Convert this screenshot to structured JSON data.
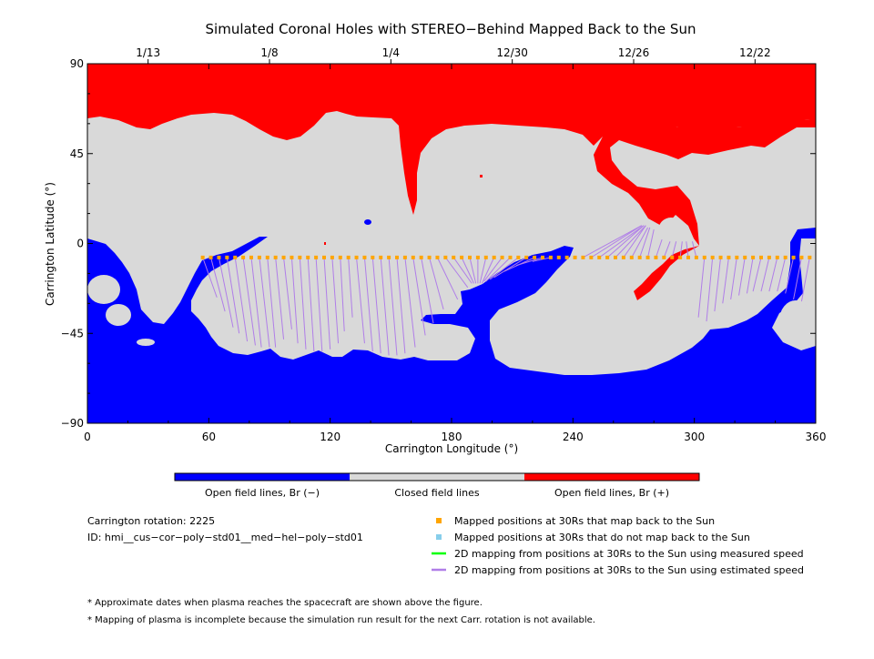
{
  "chart_data": {
    "type": "heatmap",
    "title": "Simulated Coronal Holes with STEREO−Behind Mapped Back to the Sun",
    "xlabel": "Carrington Longitude (°)",
    "ylabel": "Carrington Latitude (°)",
    "xlim": [
      0,
      360
    ],
    "ylim": [
      -90,
      90
    ],
    "x_ticks": [
      "0",
      "60",
      "120",
      "180",
      "240",
      "300",
      "360"
    ],
    "x_tick_values": [
      0,
      60,
      120,
      180,
      240,
      300,
      360
    ],
    "y_ticks": [
      "−90",
      "−45",
      "0",
      "45",
      "90"
    ],
    "y_tick_values": [
      -90,
      -45,
      0,
      45,
      90
    ],
    "top_dates": [
      {
        "label": "1/13",
        "lon": 30
      },
      {
        "label": "1/8",
        "lon": 90
      },
      {
        "label": "1/4",
        "lon": 150
      },
      {
        "label": "12/30",
        "lon": 210
      },
      {
        "label": "12/26",
        "lon": 270
      },
      {
        "label": "12/22",
        "lon": 330
      }
    ],
    "colors": {
      "open_negative": "#0000ff",
      "closed": "#d9d9d9",
      "open_positive": "#ff0000",
      "mapped_positions": "#ffa500",
      "unmapped_positions": "#87ceeb",
      "measured_speed": "#00ff00",
      "estimated_speed": "#b07ee8"
    },
    "colorbar": [
      {
        "label": "Open field lines, Br (−)",
        "color": "#0000ff"
      },
      {
        "label": "Closed field lines",
        "color": "#d9d9d9"
      },
      {
        "label": "Open field lines, Br (+)",
        "color": "#ff0000"
      }
    ],
    "mapped_points": {
      "lat": -7,
      "lon_start": 57,
      "lon_end": 360,
      "lon_step": 4
    },
    "mapping_lines": [
      {
        "lon30": 57,
        "lon_sun": 64,
        "lat_sun": -27
      },
      {
        "lon30": 61,
        "lon_sun": 68,
        "lat_sun": -34
      },
      {
        "lon30": 65,
        "lon_sun": 72,
        "lat_sun": -42
      },
      {
        "lon30": 69,
        "lon_sun": 75,
        "lat_sun": -45
      },
      {
        "lon30": 73,
        "lon_sun": 79,
        "lat_sun": -49
      },
      {
        "lon30": 77,
        "lon_sun": 83,
        "lat_sun": -51
      },
      {
        "lon30": 81,
        "lon_sun": 86,
        "lat_sun": -52
      },
      {
        "lon30": 85,
        "lon_sun": 90,
        "lat_sun": -52
      },
      {
        "lon30": 89,
        "lon_sun": 93,
        "lat_sun": -52
      },
      {
        "lon30": 93,
        "lon_sun": 97,
        "lat_sun": -48
      },
      {
        "lon30": 97,
        "lon_sun": 101,
        "lat_sun": -43
      },
      {
        "lon30": 101,
        "lon_sun": 104,
        "lat_sun": -50
      },
      {
        "lon30": 105,
        "lon_sun": 108,
        "lat_sun": -53
      },
      {
        "lon30": 109,
        "lon_sun": 112,
        "lat_sun": -54
      },
      {
        "lon30": 113,
        "lon_sun": 116,
        "lat_sun": -54
      },
      {
        "lon30": 117,
        "lon_sun": 120,
        "lat_sun": -53
      },
      {
        "lon30": 121,
        "lon_sun": 124,
        "lat_sun": -50
      },
      {
        "lon30": 125,
        "lon_sun": 127,
        "lat_sun": -44
      },
      {
        "lon30": 129,
        "lon_sun": 131,
        "lat_sun": -37
      },
      {
        "lon30": 133,
        "lon_sun": 137,
        "lat_sun": -50
      },
      {
        "lon30": 137,
        "lon_sun": 141,
        "lat_sun": -54
      },
      {
        "lon30": 141,
        "lon_sun": 145,
        "lat_sun": -55
      },
      {
        "lon30": 145,
        "lon_sun": 149,
        "lat_sun": -56
      },
      {
        "lon30": 149,
        "lon_sun": 153,
        "lat_sun": -56
      },
      {
        "lon30": 153,
        "lon_sun": 157,
        "lat_sun": -55
      },
      {
        "lon30": 157,
        "lon_sun": 162,
        "lat_sun": -52
      },
      {
        "lon30": 161,
        "lon_sun": 167,
        "lat_sun": -46
      },
      {
        "lon30": 165,
        "lon_sun": 171,
        "lat_sun": -40
      },
      {
        "lon30": 169,
        "lon_sun": 176,
        "lat_sun": -33
      },
      {
        "lon30": 173,
        "lon_sun": 183,
        "lat_sun": -28
      },
      {
        "lon30": 177,
        "lon_sun": 188,
        "lat_sun": -22
      },
      {
        "lon30": 181,
        "lon_sun": 190,
        "lat_sun": -20
      },
      {
        "lon30": 185,
        "lon_sun": 191,
        "lat_sun": -20
      },
      {
        "lon30": 189,
        "lon_sun": 192,
        "lat_sun": -20
      },
      {
        "lon30": 193,
        "lon_sun": 193,
        "lat_sun": -20
      },
      {
        "lon30": 197,
        "lon_sun": 194,
        "lat_sun": -20
      },
      {
        "lon30": 201,
        "lon_sun": 195,
        "lat_sun": -20
      },
      {
        "lon30": 205,
        "lon_sun": 196,
        "lat_sun": -19
      },
      {
        "lon30": 209,
        "lon_sun": 197,
        "lat_sun": -19
      },
      {
        "lon30": 213,
        "lon_sun": 199,
        "lat_sun": -18
      },
      {
        "lon30": 217,
        "lon_sun": 201,
        "lat_sun": -17
      },
      {
        "lon30": 221,
        "lon_sun": 206,
        "lat_sun": -14
      },
      {
        "lon30": 225,
        "lon_sun": 212,
        "lat_sun": -11
      },
      {
        "lon30": 229,
        "lon_sun": 220,
        "lat_sun": -9
      },
      {
        "lon30": 245,
        "lon_sun": 274,
        "lat_sun": 9
      },
      {
        "lon30": 249,
        "lon_sun": 274,
        "lat_sun": 9
      },
      {
        "lon30": 253,
        "lon_sun": 275,
        "lat_sun": 9
      },
      {
        "lon30": 257,
        "lon_sun": 275,
        "lat_sun": 9
      },
      {
        "lon30": 261,
        "lon_sun": 276,
        "lat_sun": 9
      },
      {
        "lon30": 265,
        "lon_sun": 276,
        "lat_sun": 9
      },
      {
        "lon30": 269,
        "lon_sun": 277,
        "lat_sun": 8
      },
      {
        "lon30": 273,
        "lon_sun": 278,
        "lat_sun": 8
      },
      {
        "lon30": 277,
        "lon_sun": 280,
        "lat_sun": 7
      },
      {
        "lon30": 281,
        "lon_sun": 284,
        "lat_sun": 2
      },
      {
        "lon30": 285,
        "lon_sun": 288,
        "lat_sun": 1
      },
      {
        "lon30": 289,
        "lon_sun": 291,
        "lat_sun": 1
      },
      {
        "lon30": 293,
        "lon_sun": 294,
        "lat_sun": 1
      },
      {
        "lon30": 297,
        "lon_sun": 296,
        "lat_sun": 1
      },
      {
        "lon30": 301,
        "lon_sun": 299,
        "lat_sun": 1
      },
      {
        "lon30": 305,
        "lon_sun": 302,
        "lat_sun": -37
      },
      {
        "lon30": 309,
        "lon_sun": 306,
        "lat_sun": -39
      },
      {
        "lon30": 313,
        "lon_sun": 310,
        "lat_sun": -34
      },
      {
        "lon30": 317,
        "lon_sun": 314,
        "lat_sun": -30
      },
      {
        "lon30": 321,
        "lon_sun": 318,
        "lat_sun": -28
      },
      {
        "lon30": 325,
        "lon_sun": 322,
        "lat_sun": -26
      },
      {
        "lon30": 329,
        "lon_sun": 326,
        "lat_sun": -25
      },
      {
        "lon30": 333,
        "lon_sun": 329,
        "lat_sun": -24
      },
      {
        "lon30": 337,
        "lon_sun": 333,
        "lat_sun": -24
      },
      {
        "lon30": 341,
        "lon_sun": 337,
        "lat_sun": -24
      },
      {
        "lon30": 345,
        "lon_sun": 341,
        "lat_sun": -24
      },
      {
        "lon30": 349,
        "lon_sun": 345,
        "lat_sun": -25
      },
      {
        "lon30": 353,
        "lon_sun": 349,
        "lat_sun": -28
      },
      {
        "lon30": 357,
        "lon_sun": 353,
        "lat_sun": -29
      }
    ]
  },
  "info": {
    "rotation": "Carrington rotation: 2225",
    "id": "ID: hmi__cus−cor−poly−std01__med−hel−poly−std01"
  },
  "legend": [
    {
      "label": "Mapped positions at 30Rs that map back to the Sun",
      "color": "#ffa500",
      "marker": "square"
    },
    {
      "label": "Mapped positions at 30Rs that do not map back to the Sun",
      "color": "#87ceeb",
      "marker": "square"
    },
    {
      "label": "2D mapping from positions at 30Rs to the Sun using measured speed",
      "color": "#00ff00",
      "marker": "line"
    },
    {
      "label": "2D mapping from positions at 30Rs to the Sun using estimated speed",
      "color": "#b07ee8",
      "marker": "line"
    }
  ],
  "notes": [
    "* Approximate dates when plasma reaches the spacecraft are shown above the figure.",
    "* Mapping of plasma is incomplete because the simulation run result for the next Carr. rotation is not available."
  ]
}
